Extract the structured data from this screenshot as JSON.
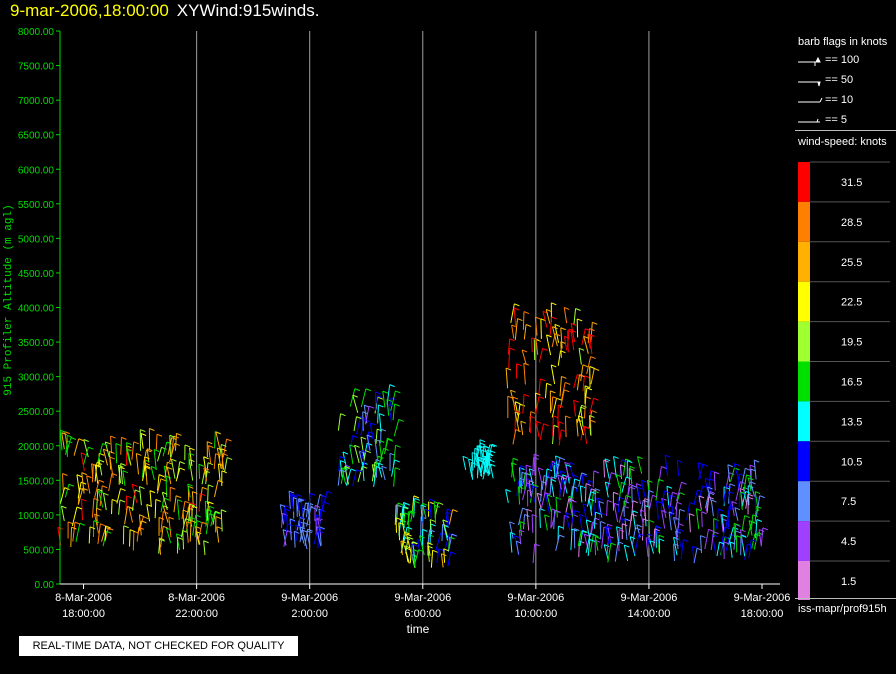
{
  "header": {
    "timestamp": "9-mar-2006,18:00:00",
    "product": "XYWind:915winds."
  },
  "legend": {
    "barb_title": "barb flags in knots",
    "barbs": [
      "== 100",
      "== 50",
      "== 10",
      "== 5"
    ],
    "speed_title": "wind-speed: knots",
    "footer": "iss-mapr/prof915h"
  },
  "notice": "REAL-TIME DATA, NOT CHECKED FOR QUALITY",
  "chart_data": {
    "type": "scatter",
    "title": "9-mar-2006,18:00:00 XYWind:915winds.",
    "xlabel": "time",
    "ylabel": "915 Profiler Altitude (m agl)",
    "ylim": [
      0,
      8000
    ],
    "xlim": [
      "8-Mar-2006 17:10",
      "9-Mar-2006 18:00"
    ],
    "yticks": [
      "0.00",
      "500.00",
      "1000.00",
      "1500.00",
      "2000.00",
      "2500.00",
      "3000.00",
      "3500.00",
      "4000.00",
      "4500.00",
      "5000.00",
      "5500.00",
      "6000.00",
      "6500.00",
      "7000.00",
      "7500.00",
      "8000.00"
    ],
    "xticks": [
      {
        "date": "8-Mar-2006",
        "time": "18:00:00"
      },
      {
        "date": "8-Mar-2006",
        "time": "22:00:00"
      },
      {
        "date": "9-Mar-2006",
        "time": "2:00:00"
      },
      {
        "date": "9-Mar-2006",
        "time": "6:00:00"
      },
      {
        "date": "9-Mar-2006",
        "time": "10:00:00"
      },
      {
        "date": "9-Mar-2006",
        "time": "14:00:00"
      },
      {
        "date": "9-Mar-2006",
        "time": "18:00:00"
      }
    ],
    "grid": true,
    "colorbar": {
      "label": "wind-speed: knots",
      "levels": [
        "31.5",
        "28.5",
        "25.5",
        "22.5",
        "19.5",
        "16.5",
        "13.5",
        "10.5",
        "7.5",
        "4.5",
        "1.5"
      ],
      "colors": [
        "#ff0000",
        "#ff8000",
        "#ffb000",
        "#ffff00",
        "#a0ff30",
        "#00e000",
        "#00ffff",
        "#0000ff",
        "#6090ff",
        "#a040ff",
        "#e080e0"
      ]
    },
    "series": [
      {
        "time_range": [
          "8-Mar-2006 17:10",
          "8-Mar-2006 23:00"
        ],
        "alt_range": [
          400,
          2000
        ],
        "speed_range": [
          15,
          31
        ]
      },
      {
        "time_range": [
          "9-Mar-2006 01:00",
          "9-Mar-2006 02:30"
        ],
        "alt_range": [
          500,
          1100
        ],
        "speed_range": [
          5,
          12
        ]
      },
      {
        "time_range": [
          "9-Mar-2006 03:00",
          "9-Mar-2006 05:00"
        ],
        "alt_range": [
          1400,
          2700
        ],
        "speed_range": [
          4,
          20
        ]
      },
      {
        "time_range": [
          "9-Mar-2006 05:00",
          "9-Mar-2006 07:00"
        ],
        "alt_range": [
          200,
          1000
        ],
        "speed_range": [
          8,
          25
        ]
      },
      {
        "time_range": [
          "9-Mar-2006 07:30",
          "9-Mar-2006 08:30"
        ],
        "alt_range": [
          1500,
          1800
        ],
        "speed_range": [
          12,
          15
        ]
      },
      {
        "time_range": [
          "9-Mar-2006 09:00",
          "9-Mar-2006 12:00"
        ],
        "alt_range": [
          2000,
          3800
        ],
        "speed_range": [
          20,
          34
        ]
      },
      {
        "time_range": [
          "9-Mar-2006 09:00",
          "9-Mar-2006 18:00"
        ],
        "alt_range": [
          300,
          1600
        ],
        "speed_range": [
          2,
          17
        ]
      }
    ]
  }
}
